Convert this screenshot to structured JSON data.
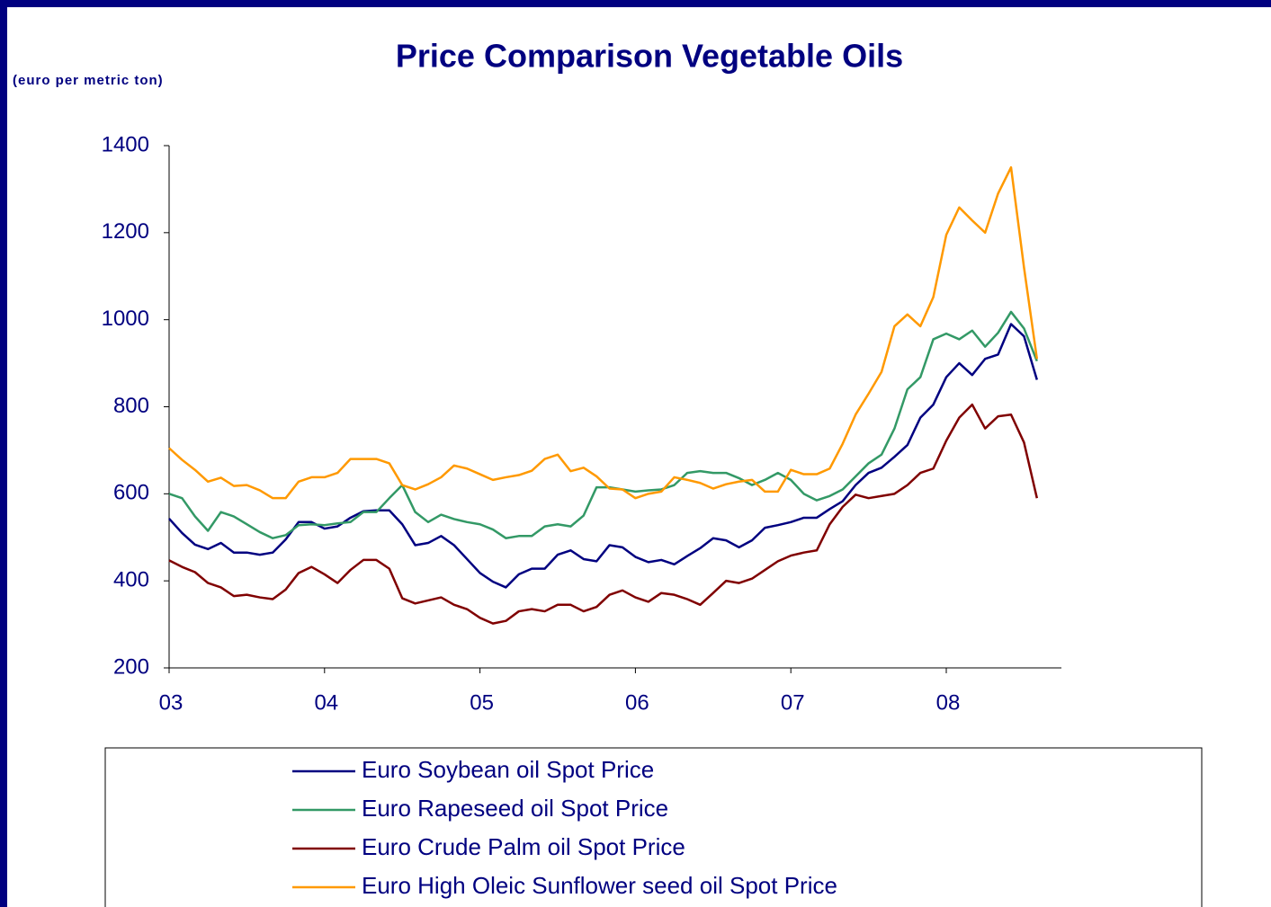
{
  "chart_data": {
    "type": "line",
    "title": "Price Comparison Vegetable Oils",
    "y_label": "(euro per metric ton)",
    "categories": [
      "03",
      null,
      null,
      null,
      null,
      null,
      null,
      null,
      null,
      null,
      null,
      null,
      "04",
      null,
      null,
      null,
      null,
      null,
      null,
      null,
      null,
      null,
      null,
      null,
      "05",
      null,
      null,
      null,
      null,
      null,
      null,
      null,
      null,
      null,
      null,
      null,
      "06",
      null,
      null,
      null,
      null,
      null,
      null,
      null,
      null,
      null,
      null,
      null,
      "07",
      null,
      null,
      null,
      null,
      null,
      null,
      null,
      null,
      null,
      null,
      null,
      "08",
      null,
      null,
      null,
      null,
      null,
      null,
      null
    ],
    "series": [
      {
        "name": "Euro Soybean oil Spot Price",
        "color": "#000080",
        "values": [
          543,
          510,
          483,
          473,
          487,
          465,
          465,
          460,
          465,
          495,
          535,
          535,
          520,
          525,
          545,
          560,
          562,
          562,
          530,
          482,
          487,
          503,
          482,
          450,
          418,
          398,
          385,
          415,
          428,
          428,
          460,
          470,
          450,
          445,
          482,
          477,
          455,
          443,
          448,
          438,
          457,
          475,
          498,
          493,
          477,
          493,
          522,
          528,
          535,
          545,
          545,
          565,
          583,
          620,
          648,
          660,
          685,
          712,
          775,
          805,
          868,
          900,
          873,
          910,
          920,
          990,
          962,
          862
        ]
      },
      {
        "name": "Euro Rapeseed oil Spot Price",
        "color": "#339966",
        "values": [
          600,
          590,
          548,
          515,
          558,
          548,
          530,
          512,
          498,
          505,
          528,
          530,
          528,
          532,
          535,
          558,
          558,
          590,
          620,
          558,
          535,
          552,
          542,
          535,
          530,
          518,
          498,
          503,
          503,
          525,
          530,
          525,
          550,
          615,
          615,
          610,
          605,
          608,
          610,
          620,
          648,
          652,
          648,
          648,
          636,
          620,
          632,
          648,
          632,
          600,
          585,
          595,
          610,
          640,
          670,
          690,
          750,
          840,
          868,
          955,
          968,
          955,
          975,
          938,
          970,
          1018,
          980,
          905
        ]
      },
      {
        "name": "Euro Crude Palm oil Spot Price",
        "color": "#800000",
        "values": [
          447,
          432,
          420,
          395,
          385,
          365,
          368,
          362,
          358,
          380,
          418,
          432,
          415,
          395,
          425,
          448,
          448,
          428,
          360,
          348,
          355,
          362,
          345,
          335,
          315,
          302,
          308,
          330,
          335,
          330,
          345,
          345,
          330,
          340,
          368,
          378,
          362,
          352,
          372,
          368,
          358,
          345,
          372,
          400,
          395,
          405,
          425,
          445,
          458,
          465,
          470,
          530,
          570,
          598,
          590,
          595,
          600,
          620,
          648,
          658,
          722,
          775,
          805,
          750,
          778,
          782,
          718,
          590
        ]
      },
      {
        "name": "Euro High Oleic Sunflower seed oil Spot Price",
        "color": "#FF9900",
        "values": [
          705,
          678,
          655,
          628,
          637,
          618,
          620,
          608,
          590,
          590,
          628,
          638,
          638,
          648,
          680,
          680,
          680,
          670,
          620,
          610,
          622,
          638,
          665,
          658,
          645,
          632,
          638,
          643,
          653,
          680,
          690,
          652,
          660,
          640,
          612,
          610,
          590,
          600,
          605,
          638,
          632,
          625,
          612,
          622,
          628,
          632,
          605,
          605,
          655,
          645,
          645,
          658,
          715,
          782,
          830,
          880,
          985,
          1012,
          985,
          1052,
          1195,
          1258,
          1228,
          1200,
          1290,
          1350,
          1120,
          910
        ]
      }
    ],
    "ylim": [
      200,
      1400
    ],
    "yticks": [
      200,
      400,
      600,
      800,
      1000,
      1200,
      1400
    ],
    "grid": false
  }
}
